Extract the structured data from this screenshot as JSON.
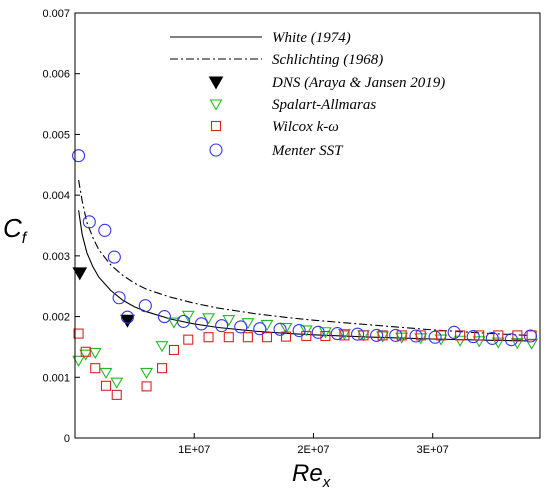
{
  "chart_data": {
    "type": "scatter",
    "title": "",
    "xlabel": "Re",
    "xlabel_sub": "x",
    "ylabel": "C",
    "ylabel_sub": "f",
    "xlim": [
      0,
      39000000
    ],
    "ylim": [
      0,
      0.007
    ],
    "x_ticks": [
      10000000,
      20000000,
      30000000
    ],
    "x_tick_labels": [
      "1E+07",
      "2E+07",
      "3E+07"
    ],
    "y_ticks": [
      0,
      0.001,
      0.002,
      0.003,
      0.004,
      0.005,
      0.006,
      0.007
    ],
    "y_tick_labels": [
      "0",
      "0.001",
      "0.002",
      "0.003",
      "0.004",
      "0.005",
      "0.006",
      "0.007"
    ],
    "grid": false,
    "legend_position": "top-right",
    "series": [
      {
        "name": "White (1974)",
        "kind": "line",
        "style": "solid",
        "color": "#000000",
        "x": [
          300000,
          600000,
          1000000,
          1500000,
          2000000,
          3000000,
          4000000,
          5000000,
          6000000,
          8000000,
          10000000,
          12000000,
          15000000,
          18000000,
          20000000,
          25000000,
          30000000,
          35000000,
          38000000
        ],
        "y": [
          0.00375,
          0.00335,
          0.00305,
          0.00282,
          0.00265,
          0.00243,
          0.00227,
          0.00216,
          0.00208,
          0.00196,
          0.00188,
          0.00182,
          0.00176,
          0.00172,
          0.0017,
          0.00166,
          0.00163,
          0.00161,
          0.0016
        ]
      },
      {
        "name": "Schlichting (1968)",
        "kind": "line",
        "style": "dashdot",
        "color": "#000000",
        "x": [
          300000,
          600000,
          1000000,
          1500000,
          2000000,
          3000000,
          4000000,
          5000000,
          6000000,
          8000000,
          10000000,
          12000000,
          15000000,
          18000000,
          20000000,
          25000000,
          30000000,
          35000000,
          38000000
        ],
        "y": [
          0.00425,
          0.0039,
          0.00355,
          0.0033,
          0.0031,
          0.00285,
          0.00268,
          0.00255,
          0.00245,
          0.00232,
          0.00222,
          0.00214,
          0.00205,
          0.00198,
          0.00194,
          0.00186,
          0.00178,
          0.00172,
          0.00169
        ]
      },
      {
        "name": "DNS (Araya & Jansen 2019)",
        "kind": "marker",
        "marker": "filled-triangle-down",
        "color": "#000000",
        "x": [
          400000,
          4400000
        ],
        "y": [
          0.00272,
          0.00194
        ]
      },
      {
        "name": "Spalart-Allmaras",
        "kind": "marker",
        "marker": "triangle-down",
        "color": "#22bb22",
        "x": [
          300000,
          900000,
          1700000,
          2600000,
          3500000,
          6000000,
          7300000,
          8300000,
          9500000,
          11200000,
          12900000,
          14500000,
          16100000,
          17700000,
          19400000,
          21000000,
          22600000,
          24200000,
          25800000,
          27400000,
          29000000,
          30700000,
          32300000,
          33900000,
          35500000,
          37100000,
          38300000
        ],
        "y": [
          0.00128,
          0.00138,
          0.00141,
          0.00108,
          0.00092,
          0.00108,
          0.00152,
          0.00191,
          0.00202,
          0.00198,
          0.00195,
          0.0019,
          0.00187,
          0.00182,
          0.00178,
          0.00175,
          0.00172,
          0.0017,
          0.00168,
          0.00166,
          0.00165,
          0.00163,
          0.00161,
          0.0016,
          0.00158,
          0.00157,
          0.00156
        ]
      },
      {
        "name": "Wilcox k-ω",
        "kind": "marker",
        "marker": "square",
        "color": "#dd2222",
        "x": [
          300000,
          900000,
          1700000,
          2600000,
          3500000,
          6000000,
          7300000,
          8300000,
          9500000,
          11200000,
          12900000,
          14500000,
          16100000,
          17700000,
          19400000,
          21000000,
          22600000,
          24200000,
          25800000,
          27400000,
          29000000,
          30700000,
          32300000,
          33900000,
          35500000,
          37100000,
          38300000
        ],
        "y": [
          0.00172,
          0.00142,
          0.00115,
          0.00086,
          0.00071,
          0.00085,
          0.00115,
          0.00145,
          0.00162,
          0.00166,
          0.00166,
          0.00166,
          0.00166,
          0.00167,
          0.00168,
          0.00168,
          0.00169,
          0.00169,
          0.00169,
          0.00169,
          0.00169,
          0.00169,
          0.00169,
          0.00169,
          0.00169,
          0.00169,
          0.00169
        ]
      },
      {
        "name": "Menter SST",
        "kind": "marker",
        "marker": "circle",
        "color": "#3333ee",
        "x": [
          300000,
          1200000,
          2500000,
          3300000,
          3700000,
          4400000,
          5900000,
          7500000,
          9100000,
          10600000,
          12300000,
          13900000,
          15500000,
          17200000,
          18800000,
          20400000,
          22000000,
          23700000,
          25300000,
          26900000,
          28600000,
          30200000,
          31800000,
          33400000,
          35000000,
          36600000,
          38200000
        ],
        "y": [
          0.00465,
          0.00356,
          0.00342,
          0.00298,
          0.00231,
          0.00199,
          0.00218,
          0.002,
          0.00192,
          0.00188,
          0.00185,
          0.00183,
          0.0018,
          0.00179,
          0.00177,
          0.00174,
          0.00172,
          0.00171,
          0.00169,
          0.00169,
          0.00168,
          0.00166,
          0.00174,
          0.00167,
          0.00164,
          0.00162,
          0.00168
        ]
      }
    ]
  }
}
